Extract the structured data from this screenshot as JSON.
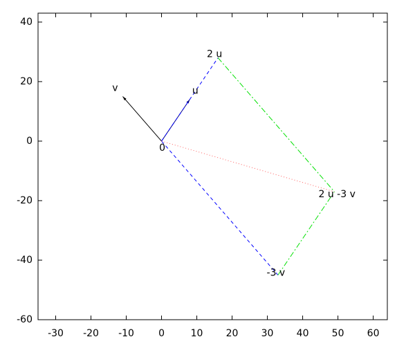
{
  "chart_data": {
    "type": "vector",
    "xlim": [
      -35,
      64
    ],
    "ylim": [
      -60,
      43
    ],
    "xticks": [
      -30,
      -20,
      -10,
      0,
      10,
      20,
      30,
      40,
      50,
      60
    ],
    "yticks": [
      -60,
      -40,
      -20,
      0,
      20,
      40
    ],
    "points": [
      {
        "label": "0",
        "x": 0,
        "y": 0
      },
      {
        "label": "u",
        "x": 8,
        "y": 14
      },
      {
        "label": "v",
        "x": -11,
        "y": 15
      },
      {
        "label": "2 u",
        "x": 16,
        "y": 28
      },
      {
        "label": "-3 v",
        "x": 33,
        "y": -45
      },
      {
        "label": "2 u -3 v",
        "x": 49,
        "y": -17
      }
    ],
    "segments": [
      {
        "from": 0,
        "to": 1,
        "color": "#000080",
        "style": "solid",
        "arrow": true
      },
      {
        "from": 0,
        "to": 2,
        "color": "#000000",
        "style": "solid",
        "arrow": true
      },
      {
        "from": 0,
        "to": 3,
        "color": "#0000ff",
        "style": "dashed",
        "arrow": false
      },
      {
        "from": 0,
        "to": 4,
        "color": "#0000ff",
        "style": "dashed",
        "arrow": false
      },
      {
        "from": 3,
        "to": 5,
        "color": "#00e000",
        "style": "dash-dot",
        "arrow": false
      },
      {
        "from": 4,
        "to": 5,
        "color": "#00e000",
        "style": "dash-dot",
        "arrow": false
      },
      {
        "from": 0,
        "to": 5,
        "color": "#ff6060",
        "style": "dotted",
        "arrow": false
      }
    ]
  }
}
